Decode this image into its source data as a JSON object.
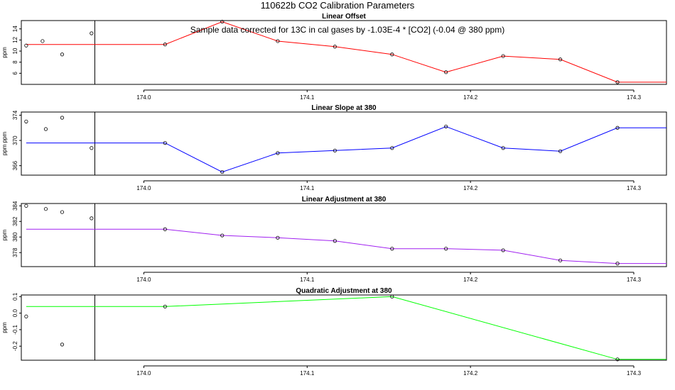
{
  "title": "110622b   CO2 Calibration Parameters",
  "chart_data": [
    {
      "type": "line",
      "title": "Linear Offset",
      "ylabel": "ppm",
      "color": "#ff0000",
      "annotation": "Sample data corrected for 13C in cal gases by -1.03E-4 * [CO2] (-0.04 @ 380 ppm)",
      "xlim": [
        173.925,
        174.32
      ],
      "ylim": [
        4,
        15.5
      ],
      "xticks": [
        "174.0",
        "174.1",
        "174.2",
        "174.3"
      ],
      "yticks": [
        "6",
        "8",
        "10",
        "12",
        "14"
      ],
      "vline_x": 173.97,
      "prior_points": {
        "x": [
          173.928,
          173.938,
          173.95,
          173.968
        ],
        "y": [
          11.0,
          11.8,
          9.4,
          13.2
        ]
      },
      "x": [
        173.928,
        174.013,
        174.048,
        174.082,
        174.117,
        174.152,
        174.185,
        174.22,
        174.255,
        174.29,
        174.32
      ],
      "y": [
        11.2,
        11.2,
        15.3,
        11.8,
        10.8,
        9.4,
        6.2,
        9.1,
        8.5,
        4.4,
        4.4
      ],
      "markers": [
        false,
        true,
        true,
        true,
        true,
        true,
        true,
        true,
        true,
        true,
        false
      ]
    },
    {
      "type": "line",
      "title": "Linear Slope at 380",
      "ylabel": "ppm ppm",
      "color": "#0000ff",
      "xlim": [
        173.925,
        174.32
      ],
      "ylim": [
        364.5,
        374.5
      ],
      "xticks": [
        "174.0",
        "174.1",
        "174.2",
        "174.3"
      ],
      "yticks": [
        "366",
        "370",
        "374"
      ],
      "vline_x": 173.97,
      "prior_points": {
        "x": [
          173.928,
          173.94,
          173.95,
          173.968
        ],
        "y": [
          373.0,
          371.8,
          373.6,
          368.8
        ]
      },
      "x": [
        173.928,
        174.013,
        174.048,
        174.082,
        174.117,
        174.152,
        174.185,
        174.22,
        174.255,
        174.29,
        174.32
      ],
      "y": [
        369.6,
        369.6,
        365.0,
        368.0,
        368.4,
        368.8,
        372.2,
        368.8,
        368.3,
        372.0,
        372.0
      ],
      "markers": [
        false,
        true,
        true,
        true,
        true,
        true,
        true,
        true,
        true,
        true,
        false
      ]
    },
    {
      "type": "line",
      "title": "Linear Adjustment at 380",
      "ylabel": "ppm",
      "color": "#a020f0",
      "xlim": [
        173.925,
        174.32
      ],
      "ylim": [
        376.2,
        384.3
      ],
      "xticks": [
        "174.0",
        "174.1",
        "174.2",
        "174.3"
      ],
      "yticks": [
        "378",
        "380",
        "382",
        "384"
      ],
      "vline_x": 173.97,
      "prior_points": {
        "x": [
          173.928,
          173.94,
          173.95,
          173.968
        ],
        "y": [
          384.0,
          383.6,
          383.2,
          382.4
        ]
      },
      "x": [
        173.928,
        174.013,
        174.048,
        174.082,
        174.117,
        174.152,
        174.185,
        174.22,
        174.255,
        174.29,
        174.32
      ],
      "y": [
        381.0,
        381.0,
        380.2,
        379.9,
        379.5,
        378.5,
        378.5,
        378.3,
        377.0,
        376.6,
        376.6
      ],
      "markers": [
        false,
        true,
        true,
        true,
        true,
        true,
        true,
        true,
        true,
        true,
        false
      ]
    },
    {
      "type": "line",
      "title": "Quadratic Adjustment at 380",
      "ylabel": "ppm",
      "color": "#00ff00",
      "xlim": [
        173.925,
        174.32
      ],
      "ylim": [
        -0.285,
        0.11
      ],
      "xticks": [
        "174.0",
        "174.1",
        "174.2",
        "174.3"
      ],
      "yticks": [
        "-0.2",
        "-0.1",
        "0.0",
        "0.1"
      ],
      "vline_x": 173.97,
      "prior_points": {
        "x": [
          173.928,
          173.95
        ],
        "y": [
          -0.02,
          -0.19
        ]
      },
      "x": [
        173.928,
        174.013,
        174.152,
        174.29,
        174.32
      ],
      "y": [
        0.04,
        0.04,
        0.1,
        -0.28,
        -0.28
      ],
      "markers": [
        false,
        true,
        true,
        true,
        false
      ]
    }
  ]
}
